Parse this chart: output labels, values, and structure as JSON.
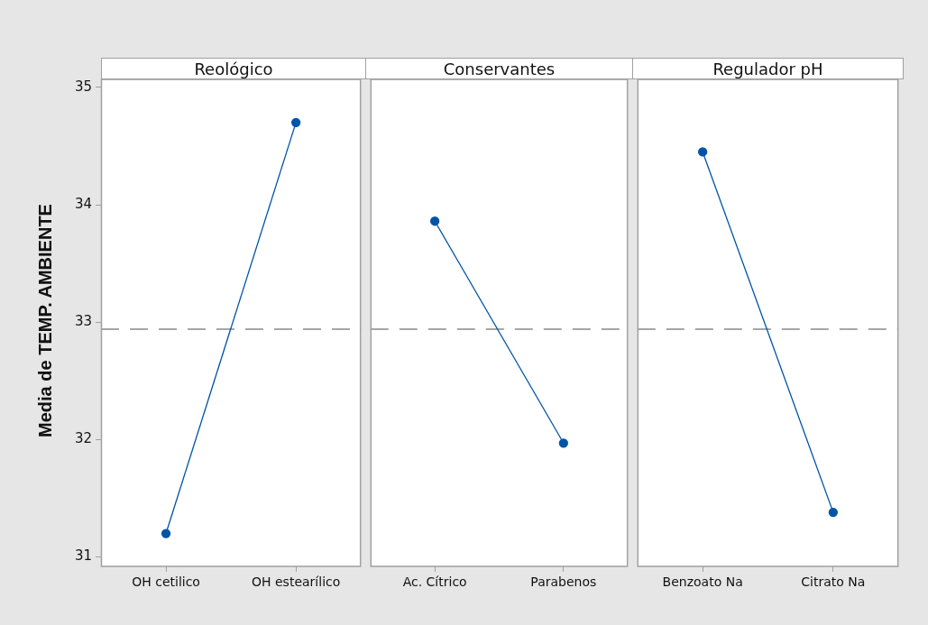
{
  "chart_data": [
    {
      "type": "line",
      "title": "Reológico",
      "ylabel": "Media de TEMP. AMBIENTE",
      "categories": [
        "OH cetilico",
        "OH estearílico"
      ],
      "series": [
        {
          "color": "#0054a6",
          "values": [
            31.2,
            34.7
          ]
        }
      ],
      "ylim": [
        30.92,
        35.06
      ],
      "yticks": [
        31,
        32,
        33,
        34,
        35
      ],
      "ref_lines": [
        {
          "axis": "y",
          "value": 32.94,
          "color": "#a6a6a6",
          "line_style": "dashed"
        }
      ],
      "legend": false,
      "marker": "circle",
      "line_style": "solid"
    },
    {
      "type": "line",
      "title": "Conservantes",
      "categories": [
        "Ac. Cítrico",
        "Parabenos"
      ],
      "series": [
        {
          "color": "#0054a6",
          "values": [
            33.86,
            31.97
          ]
        }
      ],
      "ylim": [
        30.92,
        35.06
      ],
      "yticks": [
        31,
        32,
        33,
        34,
        35
      ],
      "tick_labels": "x",
      "ref_lines": [
        {
          "axis": "y",
          "value": 32.94,
          "color": "#a6a6a6",
          "line_style": "dashed"
        }
      ],
      "legend": false,
      "marker": "circle",
      "line_style": "solid"
    },
    {
      "type": "line",
      "title": "Regulador pH",
      "categories": [
        "Benzoato Na",
        "Citrato Na"
      ],
      "series": [
        {
          "color": "#0054a6",
          "values": [
            34.45,
            31.38
          ]
        }
      ],
      "ylim": [
        30.92,
        35.06
      ],
      "yticks": [
        31,
        32,
        33,
        34,
        35
      ],
      "tick_labels": "x",
      "ref_lines": [
        {
          "axis": "y",
          "value": 32.94,
          "color": "#a6a6a6",
          "line_style": "dashed"
        }
      ],
      "legend": false,
      "marker": "circle",
      "line_style": "solid"
    }
  ]
}
